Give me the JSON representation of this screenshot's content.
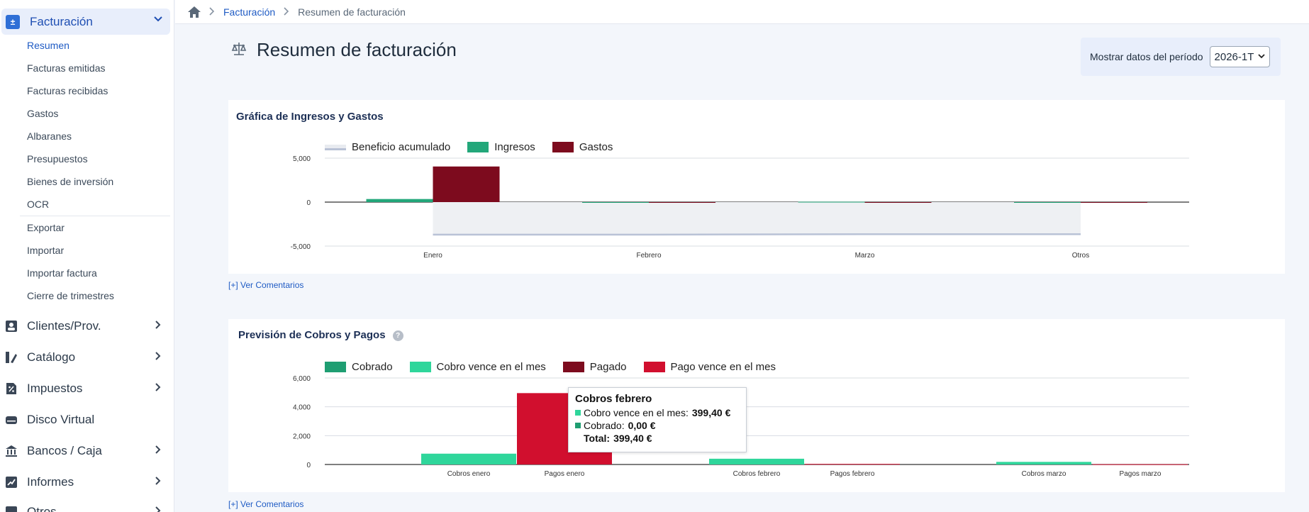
{
  "sidebar": {
    "facturacion": {
      "label": "Facturación",
      "icon": "calculator-icon"
    },
    "subitems": [
      "Resumen",
      "Facturas emitidas",
      "Facturas recibidas",
      "Gastos",
      "Albaranes",
      "Presupuestos",
      "Bienes de inversión",
      "OCR",
      "Exportar",
      "Importar",
      "Importar factura",
      "Cierre de trimestres"
    ],
    "sections": [
      {
        "label": "Clientes/Prov.",
        "icon": "contact-card-icon"
      },
      {
        "label": "Catálogo",
        "icon": "catalog-icon"
      },
      {
        "label": "Impuestos",
        "icon": "tax-percent-icon"
      },
      {
        "label": "Disco Virtual",
        "icon": "disk-icon"
      },
      {
        "label": "Bancos / Caja",
        "icon": "bank-icon"
      },
      {
        "label": "Informes",
        "icon": "report-chart-icon"
      },
      {
        "label": "Otros",
        "icon": "more-icon"
      }
    ]
  },
  "breadcrumb": {
    "parent": "Facturación",
    "current": "Resumen de facturación"
  },
  "header": {
    "title": "Resumen de facturación",
    "period_label": "Mostrar datos del período",
    "period_value": "2026-1T"
  },
  "chart1": {
    "title": "Gráfica de Ingresos y Gastos",
    "comments": "[+] Ver Comentarios"
  },
  "chart2": {
    "title": "Previsión de Cobros y Pagos",
    "help": "?",
    "comments": "[+] Ver Comentarios"
  },
  "tooltip": {
    "title": "Cobros febrero",
    "rows": [
      {
        "label": "Cobro vence en el mes:",
        "value": "399,40 €",
        "color": "#2fd69b"
      },
      {
        "label": "Cobrado:",
        "value": "0,00 €",
        "color": "#1f9e72"
      }
    ],
    "total_label": "Total:",
    "total_value": "399,40 €"
  },
  "chart_data": [
    {
      "type": "bar",
      "title": "Gráfica de Ingresos y Gastos",
      "categories": [
        "Enero",
        "Febrero",
        "Marzo",
        "Otros"
      ],
      "ylim": [
        -5000,
        5000
      ],
      "yticks": [
        "5,000",
        "0",
        "-5,000"
      ],
      "legend_position": "top-left",
      "series": [
        {
          "name": "Beneficio acumulado",
          "kind": "area",
          "color": "#b9c2d6",
          "values": [
            -3700,
            -3700,
            -3650,
            -3650
          ]
        },
        {
          "name": "Ingresos",
          "kind": "bar",
          "color": "#23a77a",
          "values": [
            350,
            0,
            40,
            0
          ]
        },
        {
          "name": "Gastos",
          "kind": "bar",
          "color": "#7d0b1e",
          "values": [
            4050,
            0,
            0,
            0
          ]
        }
      ]
    },
    {
      "type": "bar",
      "title": "Previsión de Cobros y Pagos",
      "categories": [
        "Cobros enero",
        "Pagos enero",
        "Cobros febrero",
        "Pagos febrero",
        "Cobros marzo",
        "Pagos marzo"
      ],
      "ylim": [
        0,
        6000
      ],
      "yticks": [
        "6,000",
        "4,000",
        "2,000",
        "0"
      ],
      "legend_position": "top-left",
      "series": [
        {
          "name": "Cobrado",
          "color": "#1f9e72",
          "values": [
            0,
            0,
            0,
            0,
            0,
            0
          ]
        },
        {
          "name": "Cobro vence en el mes",
          "color": "#2fd69b",
          "values": [
            750,
            0,
            399.4,
            0,
            180,
            0
          ]
        },
        {
          "name": "Pagado",
          "color": "#7d0b1e",
          "values": [
            0,
            0,
            0,
            0,
            0,
            0
          ]
        },
        {
          "name": "Pago vence en el mes",
          "color": "#d10f2e",
          "values": [
            0,
            4950,
            0,
            40,
            0,
            20
          ]
        }
      ]
    }
  ]
}
